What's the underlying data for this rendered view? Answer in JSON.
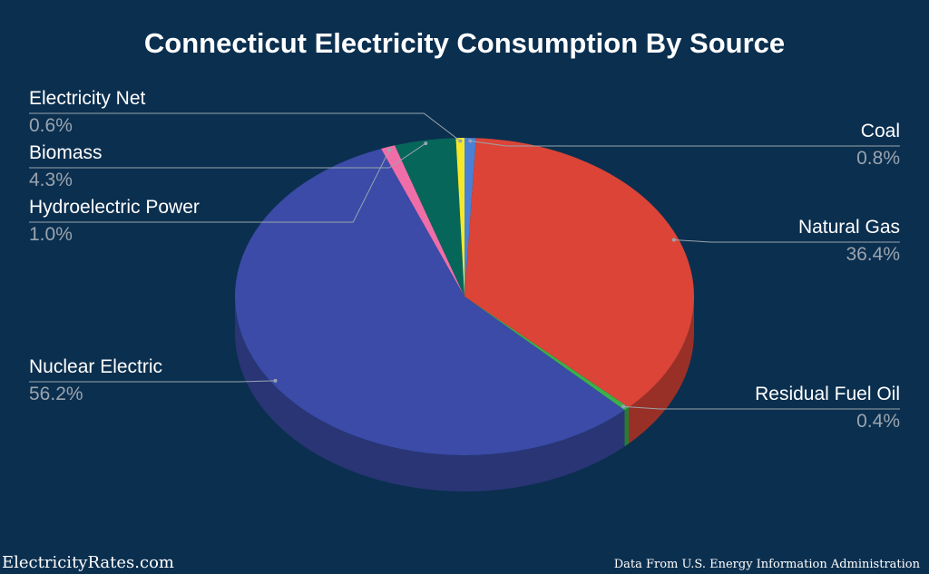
{
  "title": "Connecticut Electricity Consumption By Source",
  "footer": {
    "brand": "ElectricityRates.com",
    "source": "Data From U.S. Energy Information Administration"
  },
  "chart_data": {
    "type": "pie",
    "title": "Connecticut Electricity Consumption By Source",
    "three_d": true,
    "legend": "leader-line labels",
    "slices": [
      {
        "name": "Coal",
        "value": 0.8,
        "label": "0.8%",
        "color": "#4a80d6"
      },
      {
        "name": "Natural Gas",
        "value": 36.4,
        "label": "36.4%",
        "color": "#db4437"
      },
      {
        "name": "Residual Fuel Oil",
        "value": 0.4,
        "label": "0.4%",
        "color": "#3ab04a"
      },
      {
        "name": "Nuclear Electric",
        "value": 56.2,
        "label": "56.2%",
        "color": "#3b4ba7"
      },
      {
        "name": "Hydroelectric Power",
        "value": 1.0,
        "label": "1.0%",
        "color": "#f06ea8"
      },
      {
        "name": "Biomass",
        "value": 4.3,
        "label": "4.3%",
        "color": "#06665a"
      },
      {
        "name": "Electricity Net",
        "value": 0.6,
        "label": "0.6%",
        "color": "#f5e829"
      }
    ]
  }
}
